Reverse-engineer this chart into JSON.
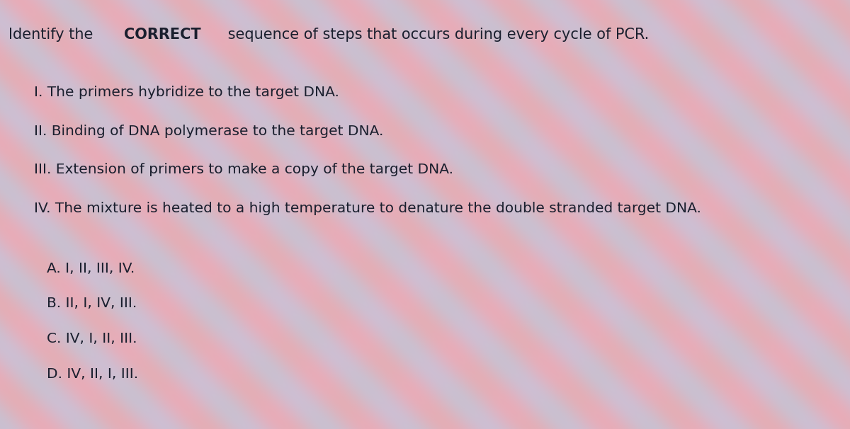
{
  "background_base": "#c8c8d8",
  "text_color": "#1a1f2e",
  "figsize": [
    12.0,
    6.06
  ],
  "dpi": 100,
  "title_prefix": "Identify the ",
  "title_bold": "CORRECT",
  "title_suffix": " sequence of steps that occurs during every cycle of PCR.",
  "title_fontsize": 15.0,
  "steps": [
    "I. The primers hybridize to the target DNA.",
    "II. Binding of DNA polymerase to the target DNA.",
    "III. Extension of primers to make a copy of the target DNA.",
    "IV. The mixture is heated to a high temperature to denature the double stranded target DNA."
  ],
  "steps_fontsize": 14.5,
  "options": [
    "A. I, II, III, IV.",
    "B. II, I, IV, III.",
    "C. IV, I, II, III.",
    "D. IV, II, I, III."
  ],
  "options_fontsize": 14.5
}
